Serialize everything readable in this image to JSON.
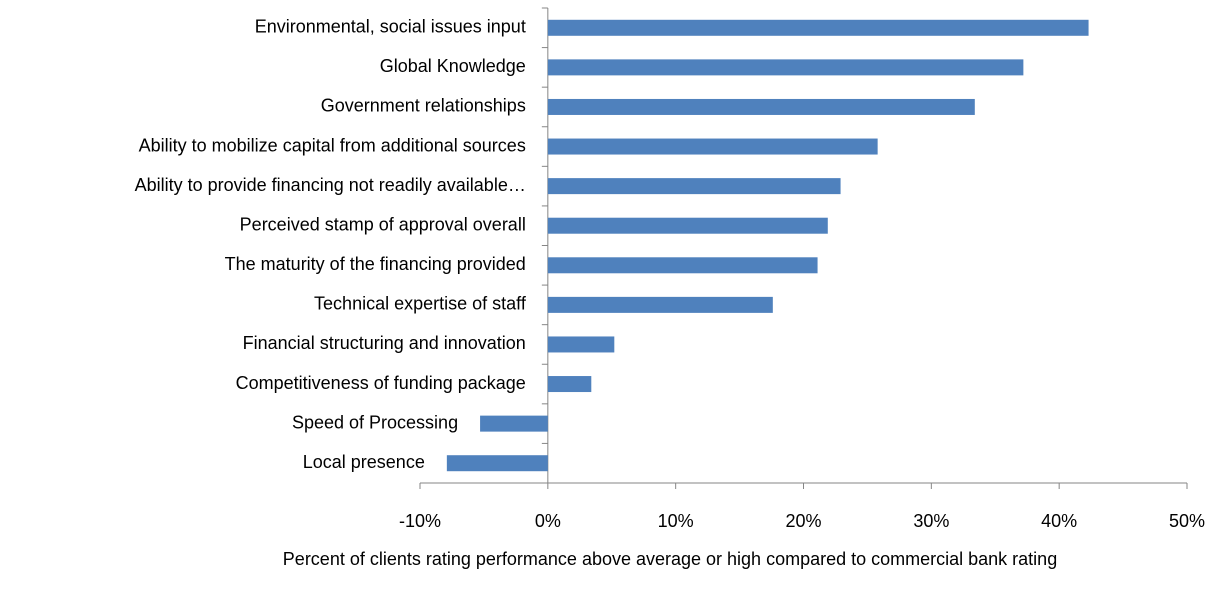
{
  "chart_data": {
    "type": "bar",
    "orientation": "horizontal",
    "x_label": "Percent of clients rating performance above average or high compared to commercial bank rating",
    "categories": [
      "Environmental, social issues input",
      "Global Knowledge",
      "Government relationships",
      "Ability to mobilize capital from additional sources",
      "Ability to provide financing not readily available…",
      "Perceived stamp of approval overall",
      "The maturity of the financing provided",
      "Technical expertise of  staff",
      "Financial structuring and innovation",
      "Competitiveness of funding package",
      "Speed of Processing",
      "Local presence"
    ],
    "values": [
      42.3,
      37.2,
      33.4,
      25.8,
      22.9,
      21.9,
      21.1,
      17.6,
      5.2,
      3.4,
      -5.3,
      -7.9
    ],
    "color": "#4f81bd",
    "xlim": [
      -10,
      50
    ],
    "xticks": [
      {
        "value": -10,
        "label": "-10%"
      },
      {
        "value": 0,
        "label": "0%"
      },
      {
        "value": 10,
        "label": "10%"
      },
      {
        "value": 20,
        "label": "20%"
      },
      {
        "value": 30,
        "label": "30%"
      },
      {
        "value": 40,
        "label": "40%"
      },
      {
        "value": 50,
        "label": "50%"
      }
    ]
  }
}
